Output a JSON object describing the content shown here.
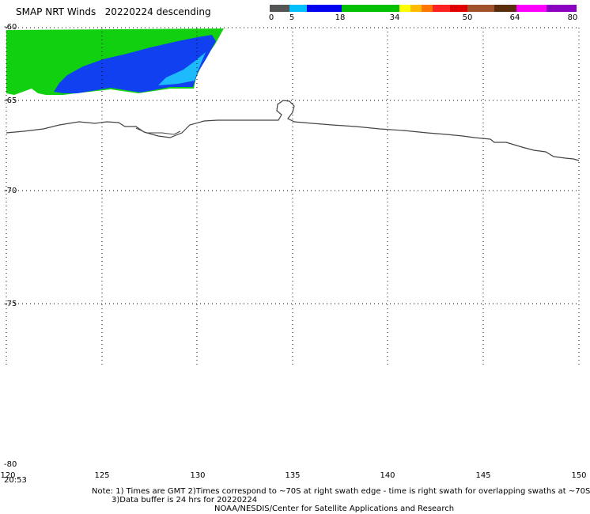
{
  "title": "SMAP NRT Winds   20220224 descending",
  "legend": {
    "ticks": [
      "0",
      "5",
      "18",
      "34",
      "50",
      "64",
      "80"
    ],
    "colors": {
      "calm": "#555555",
      "light": "#00bfff",
      "moderate": "#0000ee",
      "fresh": "#00c000",
      "gale_1": "#ffff00",
      "gale_2": "#ffbb00",
      "gale_3": "#ff7700",
      "storm_1": "#ff2222",
      "storm_2": "#e00000",
      "hurricane_1": "#a0522d",
      "hurricane_2": "#5a2d0c",
      "extreme_1": "#ff00ff",
      "extreme_2": "#8b00c0"
    }
  },
  "map": {
    "lon_range": [
      120,
      150
    ],
    "lat_range": [
      -60,
      -80
    ],
    "lon_ticks": [
      "120",
      "125",
      "130",
      "135",
      "140",
      "145",
      "150"
    ],
    "lat_ticks": [
      "-60",
      "-65",
      "-70",
      "-75",
      "-80"
    ],
    "swath_colors": {
      "green": "#10d010",
      "blue": "#1040f0",
      "cyan": "#20d0ff"
    },
    "coastline_color": "#444444",
    "grid": "dotted"
  },
  "time_label": "20:53",
  "notes": {
    "line1": "Note: 1) Times are GMT 2)Times correspond to ~70S at right swath edge - time is right swath for overlapping swaths at ~70S",
    "line2": "3)Data buffer is 24 hrs for 20220224",
    "line3": "NOAA/NESDIS/Center for Satellite Applications and Research"
  }
}
